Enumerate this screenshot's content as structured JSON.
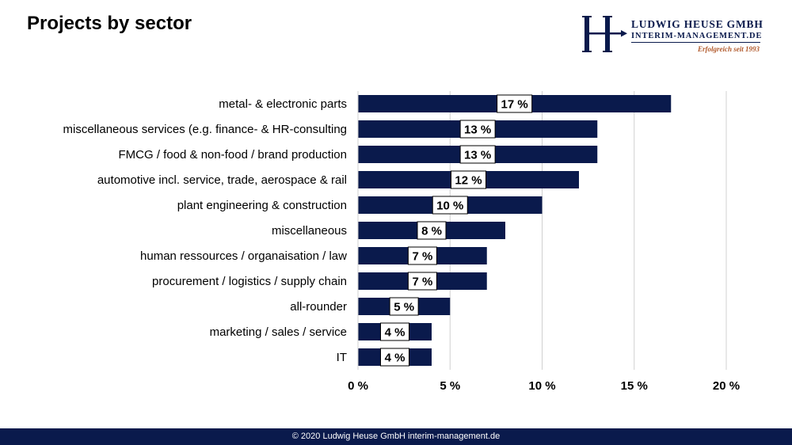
{
  "title": "Projects by sector",
  "logo": {
    "line1": "LUDWIG HEUSE GMBH",
    "line2": "INTERIM-MANAGEMENT.DE",
    "line3": "Erfolgreich seit 1993",
    "color": "#0a1a4c",
    "accent_color": "#b0582a"
  },
  "footer": "© 2020 Ludwig Heuse GmbH interim-management.de",
  "chart_data": {
    "type": "bar",
    "orientation": "horizontal",
    "categories": [
      "metal- & electronic parts",
      "miscellaneous services (e.g. finance- & HR-consulting",
      "FMCG / food & non-food / brand production",
      "automotive incl. service, trade, aerospace & rail",
      "plant engineering & construction",
      "miscellaneous",
      "human ressources / organaisation / law",
      "procurement / logistics / supply chain",
      "all-rounder",
      "marketing / sales / service",
      "IT"
    ],
    "values": [
      17,
      13,
      13,
      12,
      10,
      8,
      7,
      7,
      5,
      4,
      4
    ],
    "data_labels": [
      "17 %",
      "13 %",
      "13 %",
      "12 %",
      "10 %",
      "8 %",
      "7 %",
      "7 %",
      "5 %",
      "4 %",
      "4 %"
    ],
    "xlim": [
      0,
      20
    ],
    "x_ticks": [
      0,
      5,
      10,
      15,
      20
    ],
    "x_tick_labels": [
      "0 %",
      "5 %",
      "10 %",
      "15 %",
      "20 %"
    ],
    "grid": true,
    "bar_color": "#0a1a4c",
    "grid_color": "#d0d0d0"
  }
}
